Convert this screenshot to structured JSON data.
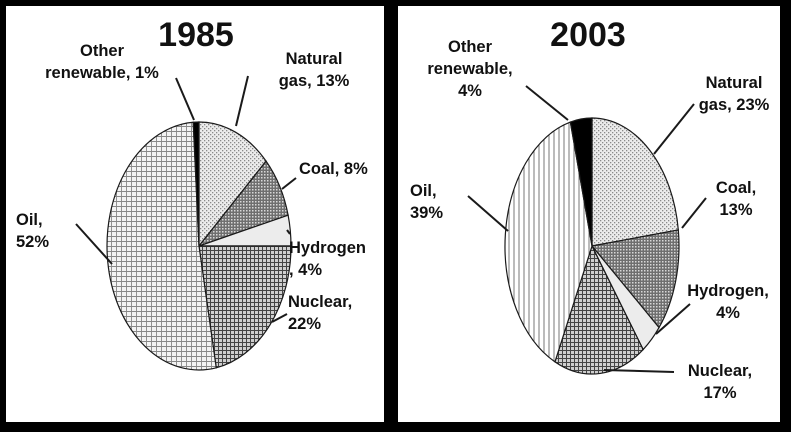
{
  "chart_data": [
    {
      "type": "pie",
      "title": "1985",
      "slices": [
        {
          "lines": [
            "Natural",
            "gas, 13%"
          ],
          "label": "Natural gas, 13%",
          "value": 13
        },
        {
          "lines": [
            "Coal, 8%"
          ],
          "label": "Coal, 8%",
          "value": 8
        },
        {
          "lines": [
            "Hydrogen",
            ", 4%"
          ],
          "label": "Hydrogen, 4%",
          "value": 4
        },
        {
          "lines": [
            "Nuclear,",
            "22%"
          ],
          "label": "Nuclear, 22%",
          "value": 22
        },
        {
          "lines": [
            "Oil,",
            "52%"
          ],
          "label": "Oil, 52%",
          "value": 52
        },
        {
          "lines": [
            "Other",
            "renewable, 1%"
          ],
          "label": "Other renewable, 1%",
          "value": 1
        }
      ]
    },
    {
      "type": "pie",
      "title": "2003",
      "slices": [
        {
          "lines": [
            "Natural",
            "gas, 23%"
          ],
          "label": "Natural gas, 23%",
          "value": 23
        },
        {
          "lines": [
            "Coal,",
            "13%"
          ],
          "label": "Coal, 13%",
          "value": 13
        },
        {
          "lines": [
            "Hydrogen,",
            "4%"
          ],
          "label": "Hydrogen, 4%",
          "value": 4
        },
        {
          "lines": [
            "Nuclear,",
            "17%"
          ],
          "label": "Nuclear, 17%",
          "value": 17
        },
        {
          "lines": [
            "Oil,",
            "39%"
          ],
          "label": "Oil, 39%",
          "value": 39
        },
        {
          "lines": [
            "Other",
            "renewable,",
            "4%"
          ],
          "label": "Other renewable, 4%",
          "value": 4
        }
      ]
    }
  ]
}
